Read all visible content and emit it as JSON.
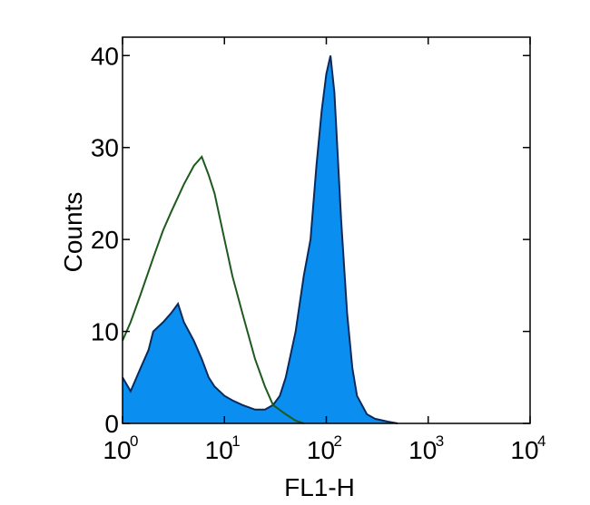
{
  "chart_data": {
    "type": "area",
    "xlabel": "FL1-H",
    "ylabel": "Counts",
    "xscale": "log",
    "xlim": [
      1,
      10000
    ],
    "ylim": [
      0,
      42
    ],
    "grid": false,
    "x_ticks": [
      {
        "base": "10",
        "exp": "0"
      },
      {
        "base": "10",
        "exp": "1"
      },
      {
        "base": "10",
        "exp": "2"
      },
      {
        "base": "10",
        "exp": "3"
      },
      {
        "base": "10",
        "exp": "4"
      }
    ],
    "y_ticks": [
      "0",
      "10",
      "20",
      "30",
      "40"
    ],
    "series": [
      {
        "style": "filled",
        "fill_color": "#0a8ff0",
        "edge_color": "#0b2a5c",
        "x": [
          1,
          1.2,
          1.5,
          1.8,
          2,
          2.5,
          3,
          3.5,
          4,
          5,
          6,
          7,
          8,
          10,
          12,
          15,
          20,
          25,
          30,
          35,
          40,
          50,
          60,
          70,
          80,
          90,
          100,
          110,
          120,
          140,
          160,
          180,
          200,
          250,
          300,
          400,
          500
        ],
        "y": [
          5,
          3.5,
          6,
          8,
          10,
          11,
          12,
          13,
          11,
          9,
          7,
          5,
          4,
          3,
          2.5,
          2,
          1.5,
          1.5,
          2,
          3,
          5,
          10,
          16,
          20,
          28,
          34,
          38,
          40,
          36,
          22,
          12,
          6,
          3,
          1,
          0.5,
          0.2,
          0
        ]
      },
      {
        "style": "line",
        "line_color": "#1e5a1e",
        "x": [
          1,
          1.2,
          1.5,
          2,
          2.5,
          3,
          4,
          5,
          6,
          7,
          8,
          10,
          12,
          15,
          20,
          25,
          30,
          40,
          50,
          60
        ],
        "y": [
          9,
          11,
          14,
          18,
          21,
          23,
          26,
          28,
          29,
          27,
          25,
          20,
          16,
          12,
          7,
          4,
          2,
          1,
          0.3,
          0
        ]
      }
    ]
  }
}
